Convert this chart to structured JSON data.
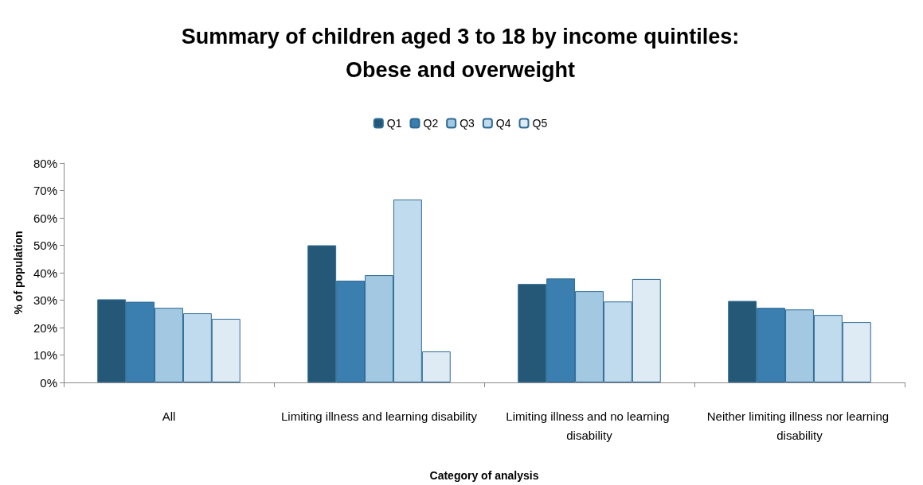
{
  "chart_data": {
    "type": "bar",
    "title": "Summary of children aged 3 to 18 by income quintiles:\nObese and overweight",
    "xlabel": "Category of analysis",
    "ylabel": "% of population",
    "categories": [
      "All",
      "Limiting illness and learning disability",
      "Limiting illness and no learning disability",
      "Neither limiting illness nor learning disability"
    ],
    "series": [
      {
        "name": "Q1",
        "color": "#245876",
        "values": [
          30.3,
          50.0,
          35.9,
          29.7
        ]
      },
      {
        "name": "Q2",
        "color": "#3a7fb0",
        "values": [
          29.4,
          37.1,
          37.9,
          27.2
        ]
      },
      {
        "name": "Q3",
        "color": "#a2c8e2",
        "values": [
          27.2,
          39.1,
          33.3,
          26.6
        ]
      },
      {
        "name": "Q4",
        "color": "#c0dbed",
        "values": [
          25.2,
          66.7,
          29.5,
          24.6
        ]
      },
      {
        "name": "Q5",
        "color": "#deebf4",
        "values": [
          23.2,
          11.3,
          37.7,
          22.0
        ]
      }
    ],
    "ylim": [
      0,
      80
    ],
    "yticks": [
      {
        "value": 0,
        "label": "0%"
      },
      {
        "value": 10,
        "label": "10%"
      },
      {
        "value": 20,
        "label": "20%"
      },
      {
        "value": 30,
        "label": "30%"
      },
      {
        "value": 40,
        "label": "40%"
      },
      {
        "value": 50,
        "label": "50%"
      },
      {
        "value": 60,
        "label": "60%"
      },
      {
        "value": 70,
        "label": "70%"
      },
      {
        "value": 80,
        "label": "80%"
      }
    ],
    "grid": false,
    "legend": "top"
  }
}
